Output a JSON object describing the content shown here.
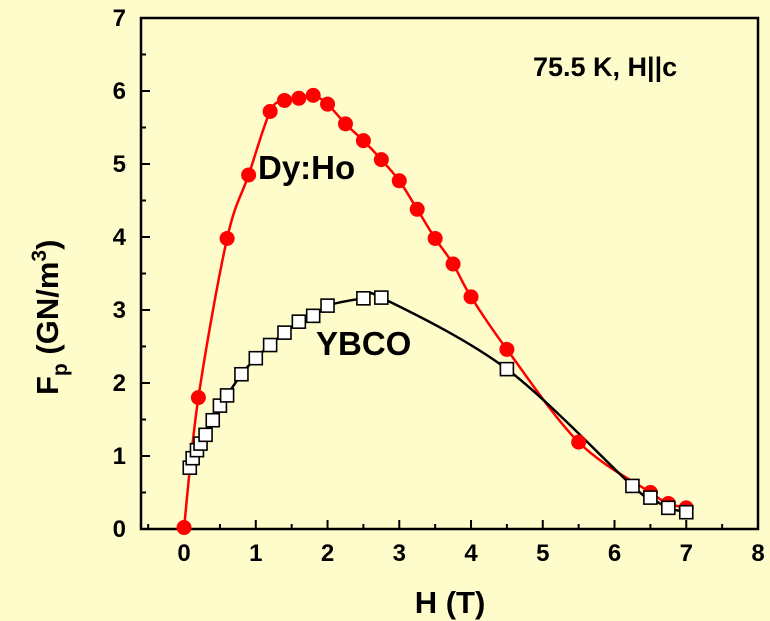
{
  "colors": {
    "background": "#fffccc",
    "dyho": "#ff0000",
    "ybco": "#000000"
  },
  "chart_data": {
    "type": "scatter",
    "annotation": "75.5 K, H||c",
    "xlabel": "H (T)",
    "ylabel": {
      "main": "F",
      "sub": "p",
      "unit_open": " (GN/m",
      "sup": "3",
      "unit_close": ")"
    },
    "xlim": [
      -0.6,
      8
    ],
    "ylim": [
      0,
      7
    ],
    "x_ticks": [
      0,
      1,
      2,
      3,
      4,
      5,
      6,
      7,
      8
    ],
    "y_ticks": [
      0,
      1,
      2,
      3,
      4,
      5,
      6,
      7
    ],
    "grid": false,
    "series": [
      {
        "name": "Dy:Ho",
        "marker": "filled-circle",
        "color": "#ff0000",
        "x": [
          0,
          0.2,
          0.6,
          0.9,
          1.2,
          1.4,
          1.6,
          1.8,
          2.0,
          2.25,
          2.5,
          2.75,
          3.0,
          3.25,
          3.5,
          3.75,
          4.0,
          4.5,
          5.5,
          6.5,
          6.75,
          7.0
        ],
        "y": [
          0.02,
          1.8,
          3.98,
          4.85,
          5.72,
          5.87,
          5.9,
          5.94,
          5.82,
          5.55,
          5.32,
          5.06,
          4.77,
          4.38,
          3.98,
          3.63,
          3.18,
          2.46,
          1.19,
          0.5,
          0.35,
          0.29
        ]
      },
      {
        "name": "YBCO",
        "marker": "open-square",
        "color": "#000000",
        "x": [
          0.08,
          0.12,
          0.18,
          0.23,
          0.3,
          0.4,
          0.5,
          0.6,
          0.8,
          1.0,
          1.2,
          1.4,
          1.6,
          1.8,
          2.0,
          2.5,
          2.75,
          4.5,
          6.25,
          6.5,
          6.75,
          7.0
        ],
        "y": [
          0.84,
          0.97,
          1.08,
          1.17,
          1.29,
          1.49,
          1.69,
          1.83,
          2.12,
          2.34,
          2.52,
          2.69,
          2.84,
          2.92,
          3.06,
          3.16,
          3.17,
          2.19,
          0.59,
          0.43,
          0.29,
          0.23
        ]
      }
    ]
  }
}
